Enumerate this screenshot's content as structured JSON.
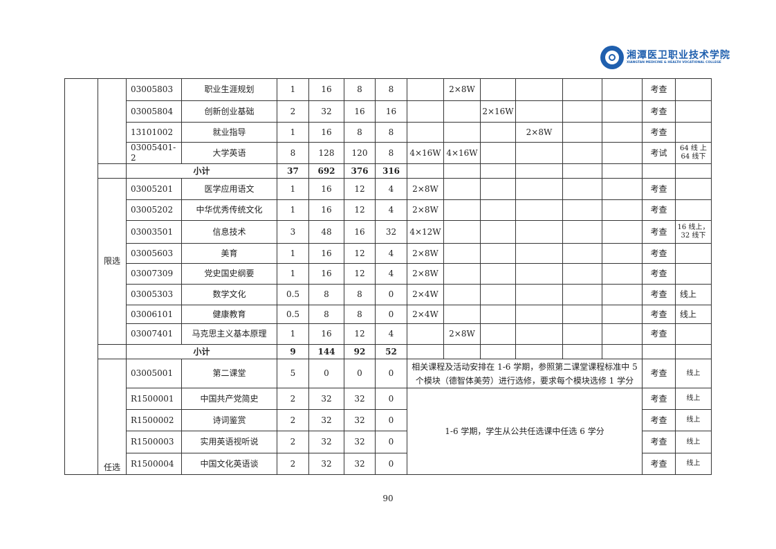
{
  "logo": {
    "cn": "湘潭医卫职业技术学院",
    "en": "XIANGTAN MEDICINE & HEALTH VOCATIONAL COLLEGE"
  },
  "page_number": "90",
  "groups": [
    {
      "label": "",
      "rows": [
        {
          "code": "03005803",
          "name": "职业生涯规划",
          "credit": "1",
          "total": "16",
          "theory": "8",
          "practice": "8",
          "sem": [
            "",
            "2×8W",
            "",
            "",
            "",
            ""
          ],
          "exam": "考查",
          "note": ""
        },
        {
          "code": "03005804",
          "name": "创新创业基础",
          "credit": "2",
          "total": "32",
          "theory": "16",
          "practice": "16",
          "sem": [
            "",
            "",
            "2×16W",
            "",
            "",
            ""
          ],
          "exam": "考查",
          "note": ""
        },
        {
          "code": "13101002",
          "name": "就业指导",
          "credit": "1",
          "total": "16",
          "theory": "8",
          "practice": "8",
          "sem": [
            "",
            "",
            "",
            "2×8W",
            "",
            ""
          ],
          "exam": "考查",
          "note": ""
        },
        {
          "code": "03005401-2",
          "name": "大学英语",
          "credit": "8",
          "total": "128",
          "theory": "120",
          "practice": "8",
          "sem": [
            "4×16W",
            "4×16W",
            "",
            "",
            "",
            ""
          ],
          "exam": "考试",
          "note": "64 线 上 64 线下"
        }
      ],
      "subtotal": {
        "label": "小计",
        "credit": "37",
        "total": "692",
        "theory": "376",
        "practice": "316"
      }
    },
    {
      "label": "限选",
      "rows": [
        {
          "code": "03005201",
          "name": "医学应用语文",
          "credit": "1",
          "total": "16",
          "theory": "12",
          "practice": "4",
          "sem": [
            "2×8W",
            "",
            "",
            "",
            "",
            ""
          ],
          "exam": "考查",
          "note": ""
        },
        {
          "code": "03005202",
          "name": "中华优秀传统文化",
          "credit": "1",
          "total": "16",
          "theory": "12",
          "practice": "4",
          "sem": [
            "2×8W",
            "",
            "",
            "",
            "",
            ""
          ],
          "exam": "考查",
          "note": ""
        },
        {
          "code": "03003501",
          "name": "信息技术",
          "credit": "3",
          "total": "48",
          "theory": "16",
          "practice": "32",
          "sem": [
            "4×12W",
            "",
            "",
            "",
            "",
            ""
          ],
          "exam": "考查",
          "note": "16 线上，32 线下"
        },
        {
          "code": "03005603",
          "name": "美育",
          "credit": "1",
          "total": "16",
          "theory": "12",
          "practice": "4",
          "sem": [
            "2×8W",
            "",
            "",
            "",
            "",
            ""
          ],
          "exam": "考查",
          "note": ""
        },
        {
          "code": "03007309",
          "name": "党史国史纲要",
          "credit": "1",
          "total": "16",
          "theory": "12",
          "practice": "4",
          "sem": [
            "2×8W",
            "",
            "",
            "",
            "",
            ""
          ],
          "exam": "考查",
          "note": ""
        },
        {
          "code": "03005303",
          "name": "数学文化",
          "credit": "0.5",
          "total": "8",
          "theory": "8",
          "practice": "0",
          "sem": [
            "2×4W",
            "",
            "",
            "",
            "",
            ""
          ],
          "exam": "考查",
          "note": "线上"
        },
        {
          "code": "03006101",
          "name": "健康教育",
          "credit": "0.5",
          "total": "8",
          "theory": "8",
          "practice": "0",
          "sem": [
            "2×4W",
            "",
            "",
            "",
            "",
            ""
          ],
          "exam": "考查",
          "note": "线上"
        },
        {
          "code": "03007401",
          "name": "马克思主义基本原理",
          "credit": "1",
          "total": "16",
          "theory": "12",
          "practice": "4",
          "sem": [
            "",
            "2×8W",
            "",
            "",
            "",
            ""
          ],
          "exam": "考查",
          "note": ""
        }
      ],
      "subtotal": {
        "label": "小计",
        "credit": "9",
        "total": "144",
        "theory": "92",
        "practice": "52"
      }
    },
    {
      "label": "任选",
      "rows": [
        {
          "code": "03005001",
          "name": "第二课堂",
          "credit": "5",
          "total": "0",
          "theory": "0",
          "practice": "0",
          "merged": "相关课程及活动安排在 1-6 学期，参照第二课堂课程标准中 5 个模块（德智体美劳）进行选修，要求每个模块选修 1 学分",
          "exam": "考查",
          "note": "线上"
        },
        {
          "code": "R1500001",
          "name": "中国共产党简史",
          "credit": "2",
          "total": "32",
          "theory": "32",
          "practice": "0",
          "merged_multi": "1-6  学期，学生从公共任选课中任选 6 学分",
          "exam": "考查",
          "note": "线上"
        },
        {
          "code": "R1500002",
          "name": "诗词鉴赏",
          "credit": "2",
          "total": "32",
          "theory": "32",
          "practice": "0",
          "exam": "考查",
          "note": "线上"
        },
        {
          "code": "R1500003",
          "name": "实用英语视听说",
          "credit": "2",
          "total": "32",
          "theory": "32",
          "practice": "0",
          "exam": "考查",
          "note": "线上"
        },
        {
          "code": "R1500004",
          "name": "中国文化英语谈",
          "credit": "2",
          "total": "32",
          "theory": "32",
          "practice": "0",
          "exam": "考查",
          "note": "线上"
        }
      ]
    }
  ]
}
